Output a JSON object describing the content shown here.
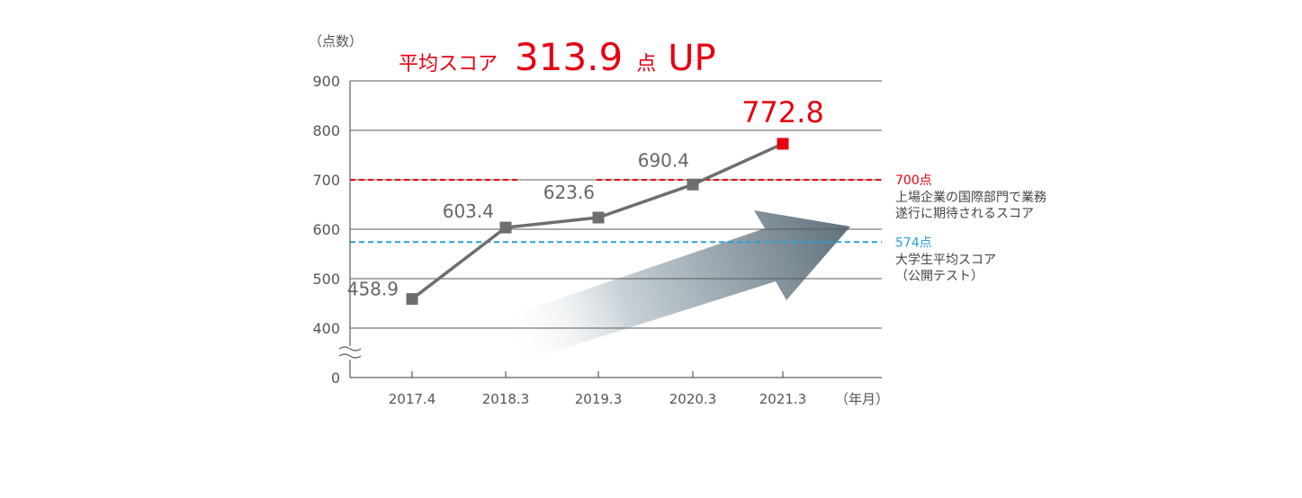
{
  "colors": {
    "accent_red": "#e50012",
    "reference_blue": "#2aa1d8",
    "line_gray": "#6e6e6e",
    "grid": "#5a5a5a",
    "text_gray": "#555555"
  },
  "headline": {
    "prefix": "平均スコア",
    "value": "313.9",
    "unit": "点",
    "suffix": "UP"
  },
  "chart_data": {
    "type": "line",
    "title": "平均スコア 313.9 点 UP",
    "ylabel": "（点数）",
    "xlabel": "（年月）",
    "categories": [
      "2017.4",
      "2018.3",
      "2019.3",
      "2020.3",
      "2021.3"
    ],
    "series": [
      {
        "name": "",
        "values": [
          458.9,
          603.4,
          623.6,
          690.4,
          772.8
        ],
        "labels": [
          "458.9",
          "603.4",
          "623.6",
          "690.4",
          "772.8"
        ],
        "highlight_last": true
      }
    ],
    "yticks": [
      0,
      400,
      500,
      600,
      700,
      800,
      900
    ],
    "ylim": [
      0,
      900
    ],
    "axis_break": true,
    "grid": true,
    "reference_lines": [
      {
        "value": 700,
        "label": "700点",
        "description_lines": [
          "上場企業の国際部門で業務",
          "遂行に期待されるスコア"
        ],
        "color": "#e50012",
        "style": "dashed"
      },
      {
        "value": 574,
        "label": "574点",
        "description_lines": [
          "大学生平均スコア",
          "（公開テスト）"
        ],
        "color": "#2aa1d8",
        "style": "dashed"
      }
    ],
    "trend_arrow": true
  }
}
